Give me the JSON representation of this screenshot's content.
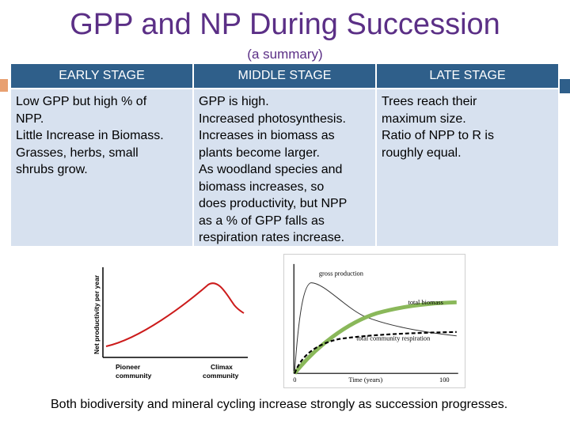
{
  "title": "GPP and NP During Succession",
  "subtitle": "(a summary)",
  "table": {
    "headers": [
      "EARLY STAGE",
      "MIDDLE STAGE",
      "LATE STAGE"
    ],
    "early": [
      "Low GPP but high % of",
      "NPP.",
      "Little Increase in Biomass.",
      "Grasses, herbs, small",
      "shrubs grow."
    ],
    "middle": [
      "GPP is high.",
      "Increased photosynthesis.",
      "Increases in biomass as",
      "plants become larger.",
      "As woodland species and",
      "biomass increases, so",
      "does productivity, but NPP",
      "as a % of GPP falls as",
      "respiration rates increase."
    ],
    "late": [
      "Trees reach their",
      "maximum size.",
      "Ratio of NPP to R is",
      "roughly equal."
    ]
  },
  "chart_left": {
    "ylabel": "Net productivity per year",
    "x_left": [
      "Pioneer",
      "community"
    ],
    "x_right": [
      "Climax",
      "community"
    ]
  },
  "chart_right": {
    "gross_label": "gross production",
    "biomass_label": "total biomass",
    "respiration_label": "total community respiration",
    "xlabel": "Time (years)",
    "x_start": "0",
    "x_end": "100"
  },
  "footer": "Both biodiversity and mineral cycling increase strongly as succession progresses.",
  "colors": {
    "title": "#5b2f86",
    "header_bg": "#2f5f8a",
    "cell_bg": "#d7e1ef",
    "curve_red": "#cc1b1b",
    "curve_green": "#8ab85a"
  }
}
